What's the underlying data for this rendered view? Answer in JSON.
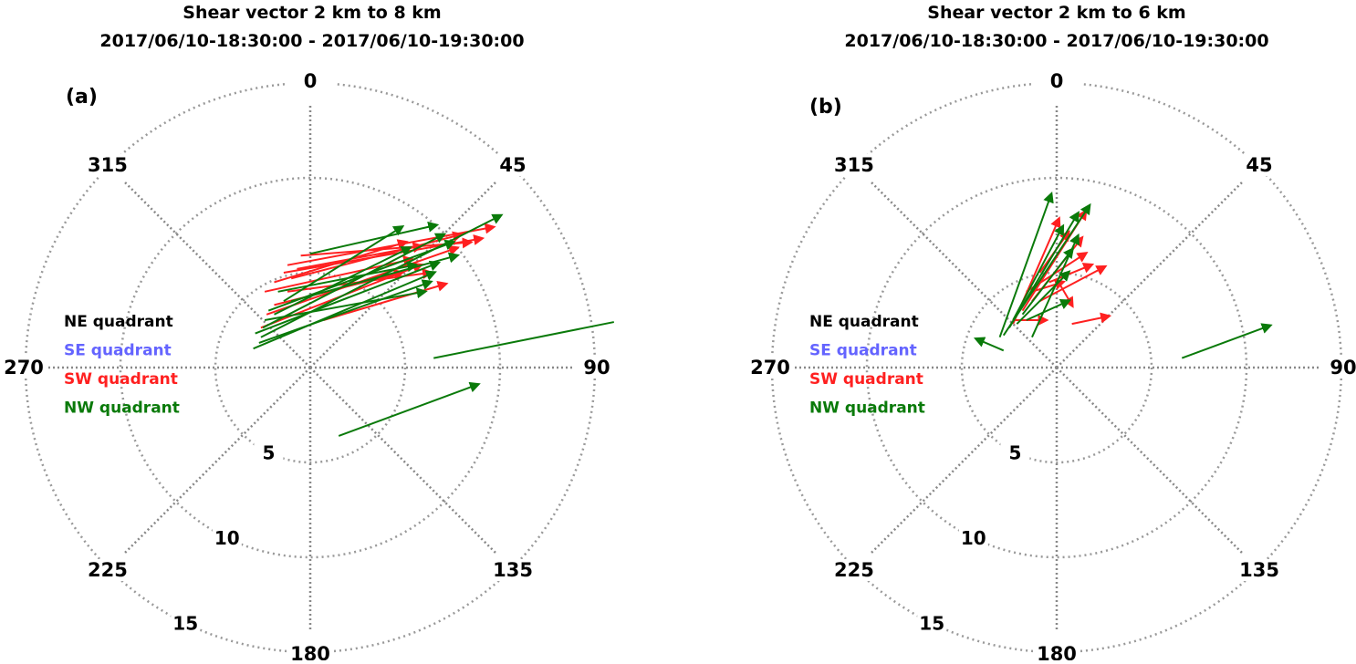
{
  "chart_data": [
    {
      "type": "polar-vector",
      "panel_label": "(a)",
      "title": "Shear vector 2 km to 8 km",
      "subtitle": "2017/06/10-18:30:00 - 2017/06/10-19:30:00",
      "angle_ticks": [
        "0",
        "45",
        "90",
        "135",
        "180",
        "225",
        "270",
        "315"
      ],
      "radial_ticks": [
        "5",
        "10",
        "15"
      ],
      "rlim": [
        0,
        15
      ],
      "grid": true,
      "legend": [
        {
          "label": "NE quadrant",
          "color": "#000000"
        },
        {
          "label": "SE quadrant",
          "color": "#6464ff"
        },
        {
          "label": "SW quadrant",
          "color": "#ff2020"
        },
        {
          "label": "NW quadrant",
          "color": "#0a7a0a"
        }
      ],
      "series": [
        {
          "quadrant": "NW",
          "color": "#0a7a0a",
          "vectors": [
            [
              -2.6,
              1.6,
              10.0,
              8.0
            ],
            [
              0,
              6.0,
              6.6,
              7.5
            ],
            [
              -3.0,
              1.0,
              6.5,
              5.0
            ],
            [
              -2.9,
              1.8,
              6.7,
              5.5
            ],
            [
              -2.4,
              2.5,
              6.0,
              4.0
            ],
            [
              -1.9,
              2.8,
              5.2,
              6.3
            ],
            [
              -2.5,
              2.1,
              7.0,
              7.0
            ],
            [
              -1.4,
              3.5,
              4.8,
              7.4
            ],
            [
              -2.7,
              1.3,
              6.3,
              4.5
            ],
            [
              -2.2,
              3.0,
              7.5,
              6.6
            ],
            [
              -1.7,
              4.0,
              5.5,
              5.4
            ],
            [
              -1.0,
              3.5,
              7.7,
              5.9
            ],
            [
              1.5,
              -3.6,
              8.8,
              -0.9
            ],
            [
              6.5,
              0.5,
              16.0,
              2.4,
              "noarrow"
            ]
          ]
        },
        {
          "quadrant": "SW",
          "color": "#ff2020",
          "vectors": [
            [
              -1.2,
              5.4,
              9.6,
              7.4
            ],
            [
              -1.4,
              5.0,
              9.0,
              6.8
            ],
            [
              -0.5,
              5.9,
              8.4,
              6.6
            ],
            [
              -2.3,
              2.8,
              7.7,
              6.3
            ],
            [
              -2.4,
              4.0,
              5.3,
              5.7
            ],
            [
              0.7,
              2.5,
              7.1,
              4.4
            ],
            [
              -1.9,
              3.3,
              4.8,
              5.0
            ],
            [
              -2.6,
              2.1,
              5.8,
              5.4
            ],
            [
              -1.0,
              4.7,
              7.9,
              7.0
            ],
            [
              -1.9,
              4.5,
              5.0,
              6.6
            ],
            [
              -1.2,
              4.0,
              6.3,
              5.0
            ],
            [
              -0.7,
              5.2,
              5.8,
              6.4
            ]
          ]
        }
      ]
    },
    {
      "type": "polar-vector",
      "panel_label": "(b)",
      "title": "Shear vector 2 km to 6 km",
      "subtitle": "2017/06/10-18:30:00 - 2017/06/10-19:30:00",
      "angle_ticks": [
        "0",
        "45",
        "90",
        "135",
        "180",
        "225",
        "270",
        "315"
      ],
      "radial_ticks": [
        "5",
        "10",
        "15"
      ],
      "rlim": [
        0,
        15
      ],
      "grid": true,
      "legend": [
        {
          "label": "NE quadrant",
          "color": "#000000"
        },
        {
          "label": "SE quadrant",
          "color": "#6464ff"
        },
        {
          "label": "SW quadrant",
          "color": "#ff2020"
        },
        {
          "label": "NW quadrant",
          "color": "#0a7a0a"
        }
      ],
      "series": [
        {
          "quadrant": "NW",
          "color": "#0a7a0a",
          "vectors": [
            [
              -3.0,
              1.6,
              -0.3,
              9.1
            ],
            [
              -2.8,
              1.7,
              1.7,
              8.5
            ],
            [
              -2.5,
              2.1,
              1.1,
              8.1
            ],
            [
              -2.3,
              2.5,
              0.3,
              7.4
            ],
            [
              -2.8,
              0.9,
              -4.2,
              1.5
            ],
            [
              6.6,
              0.5,
              11.2,
              2.2
            ],
            [
              -1.8,
              2.8,
              0.8,
              6.2
            ],
            [
              -2.1,
              2.3,
              0.6,
              5.0
            ],
            [
              -1.6,
              2.5,
              0.6,
              3.5
            ],
            [
              -1.3,
              1.6,
              1.1,
              6.9
            ]
          ]
        },
        {
          "quadrant": "SW",
          "color": "#ff2020",
          "vectors": [
            [
              -2.3,
              2.3,
              0.1,
              7.8
            ],
            [
              -1.8,
              3.0,
              1.5,
              8.2
            ],
            [
              -1.3,
              3.5,
              1.3,
              6.8
            ],
            [
              -2.3,
              2.5,
              -0.6,
              2.5
            ],
            [
              0.8,
              2.3,
              2.7,
              2.7
            ],
            [
              -0.9,
              3.5,
              2.5,
              5.3
            ],
            [
              -0.4,
              4.5,
              1.8,
              5.4
            ],
            [
              0.1,
              4.5,
              0.8,
              3.3
            ],
            [
              -1.6,
              4.0,
              1.5,
              6.0
            ],
            [
              -0.9,
              5.0,
              0.6,
              7.1
            ],
            [
              -1.3,
              4.0,
              0.3,
              4.5
            ]
          ]
        }
      ]
    }
  ]
}
